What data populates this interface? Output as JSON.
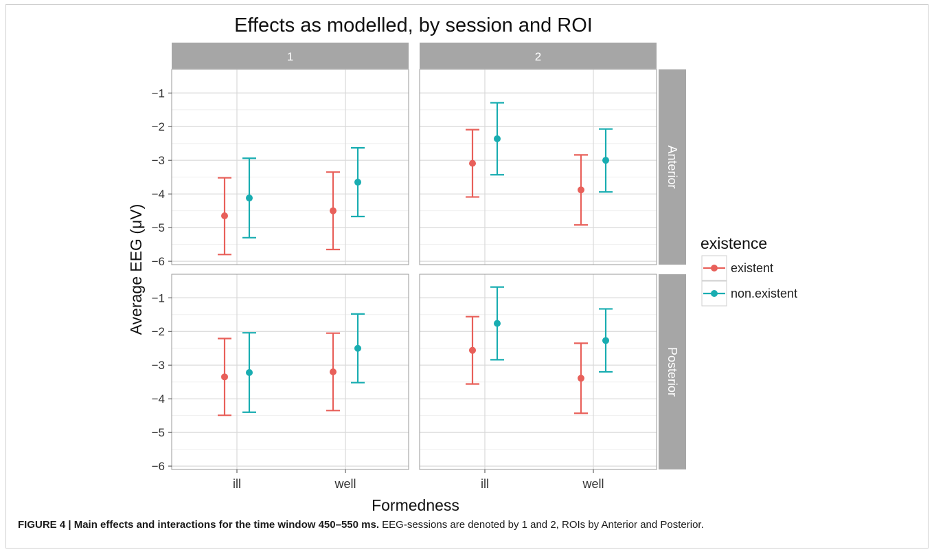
{
  "caption": {
    "bold": "FIGURE 4 | Main effects and interactions for the time window 450–550 ms.",
    "rest": " EEG-sessions are denoted by 1 and 2, ROIs by Anterior and Posterior."
  },
  "colors": {
    "existent": "#e8605a",
    "non_existent": "#19adb1",
    "strip": "#a6a6a6",
    "grid": "#d9d9d9",
    "grid_minor": "#efefef",
    "panel_border": "#999999"
  },
  "chart_data": {
    "type": "errorbar-facet",
    "title": "Effects as modelled, by session and ROI",
    "xlabel": "Formedness",
    "ylabel": "Average EEG (μV)",
    "categories": [
      "ill",
      "well"
    ],
    "ylim": [
      -6.1,
      -0.3
    ],
    "yticks": [
      -1,
      -2,
      -3,
      -4,
      -5,
      -6
    ],
    "legend": {
      "title": "existence",
      "position": "right",
      "entries": [
        "existent",
        "non.existent"
      ]
    },
    "facet_cols": [
      "1",
      "2"
    ],
    "facet_rows": [
      "Anterior",
      "Posterior"
    ],
    "panels": [
      {
        "session": "1",
        "roi": "Anterior",
        "series": [
          {
            "name": "existent",
            "values": [
              -4.65,
              -4.5
            ],
            "lower": [
              -5.8,
              -5.65
            ],
            "upper": [
              -3.52,
              -3.35
            ]
          },
          {
            "name": "non.existent",
            "values": [
              -4.12,
              -3.65
            ],
            "lower": [
              -5.3,
              -4.67
            ],
            "upper": [
              -2.94,
              -2.63
            ]
          }
        ]
      },
      {
        "session": "2",
        "roi": "Anterior",
        "series": [
          {
            "name": "existent",
            "values": [
              -3.09,
              -3.88
            ],
            "lower": [
              -4.09,
              -4.92
            ],
            "upper": [
              -2.09,
              -2.84
            ]
          },
          {
            "name": "non.existent",
            "values": [
              -2.36,
              -3.0
            ],
            "lower": [
              -3.43,
              -3.94
            ],
            "upper": [
              -1.29,
              -2.07
            ]
          }
        ]
      },
      {
        "session": "1",
        "roi": "Posterior",
        "series": [
          {
            "name": "existent",
            "values": [
              -3.35,
              -3.2
            ],
            "lower": [
              -4.49,
              -4.35
            ],
            "upper": [
              -2.21,
              -2.05
            ]
          },
          {
            "name": "non.existent",
            "values": [
              -3.22,
              -2.5
            ],
            "lower": [
              -4.4,
              -3.52
            ],
            "upper": [
              -2.04,
              -1.48
            ]
          }
        ]
      },
      {
        "session": "2",
        "roi": "Posterior",
        "series": [
          {
            "name": "existent",
            "values": [
              -2.56,
              -3.39
            ],
            "lower": [
              -3.56,
              -4.43
            ],
            "upper": [
              -1.56,
              -2.35
            ]
          },
          {
            "name": "non.existent",
            "values": [
              -1.76,
              -2.27
            ],
            "lower": [
              -2.84,
              -3.2
            ],
            "upper": [
              -0.68,
              -1.33
            ]
          }
        ]
      }
    ]
  }
}
